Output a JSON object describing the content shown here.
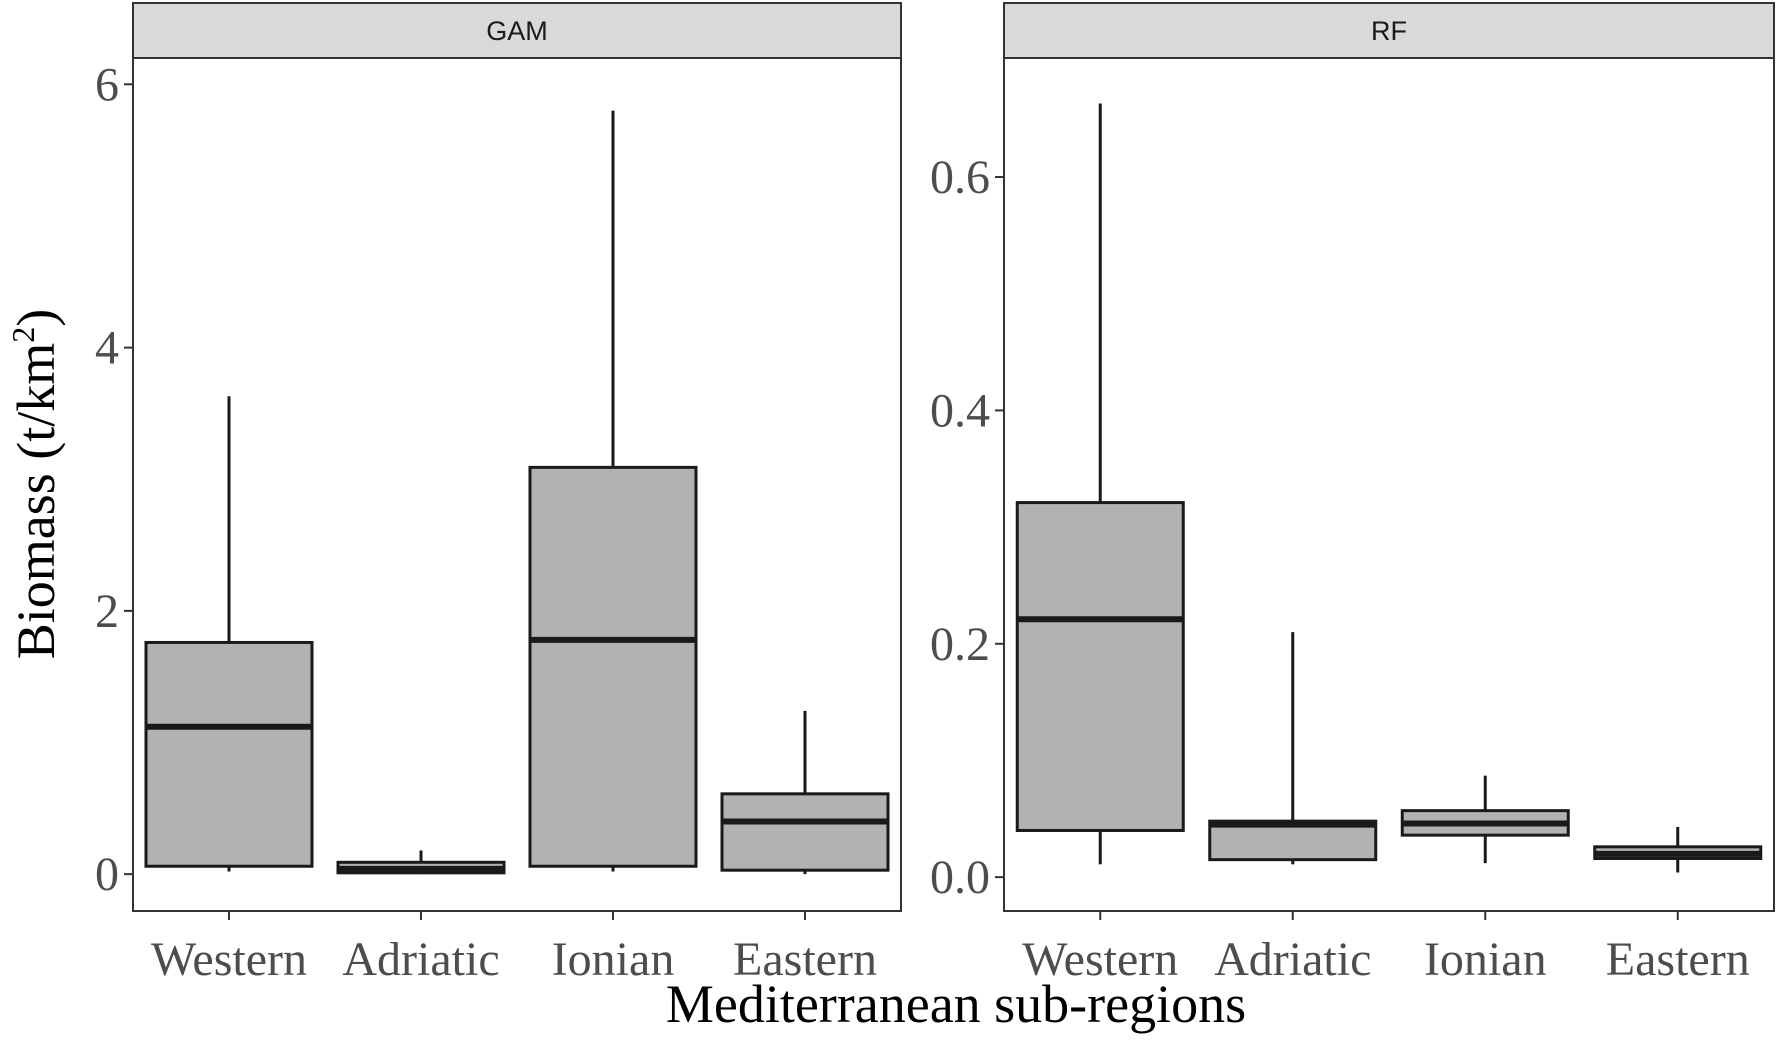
{
  "chart_data": [
    {
      "type": "box",
      "panel": "GAM",
      "categories": [
        "Western",
        "Adriatic",
        "Ionian",
        "Eastern"
      ],
      "boxes": [
        {
          "category": "Western",
          "min": 0.02,
          "q1": 0.06,
          "median": 1.12,
          "q3": 1.76,
          "max": 3.63
        },
        {
          "category": "Adriatic",
          "min": 0.0,
          "q1": 0.01,
          "median": 0.04,
          "q3": 0.09,
          "max": 0.18
        },
        {
          "category": "Ionian",
          "min": 0.02,
          "q1": 0.06,
          "median": 1.78,
          "q3": 3.09,
          "max": 5.8
        },
        {
          "category": "Eastern",
          "min": 0.0,
          "q1": 0.03,
          "median": 0.4,
          "q3": 0.61,
          "max": 1.24
        }
      ],
      "yticks": [
        0,
        2,
        4,
        6
      ],
      "ytick_labels": [
        "0",
        "2",
        "4",
        "6"
      ],
      "ylim": [
        -0.28,
        6.2
      ],
      "box_color": "#b2b2b2",
      "line_color": "#1a1a1a"
    },
    {
      "type": "box",
      "panel": "RF",
      "categories": [
        "Western",
        "Adriatic",
        "Ionian",
        "Eastern"
      ],
      "boxes": [
        {
          "category": "Western",
          "min": 0.011,
          "q1": 0.04,
          "median": 0.221,
          "q3": 0.321,
          "max": 0.663
        },
        {
          "category": "Adriatic",
          "min": 0.011,
          "q1": 0.015,
          "median": 0.045,
          "q3": 0.048,
          "max": 0.21
        },
        {
          "category": "Ionian",
          "min": 0.012,
          "q1": 0.036,
          "median": 0.046,
          "q3": 0.057,
          "max": 0.087
        },
        {
          "category": "Eastern",
          "min": 0.004,
          "q1": 0.016,
          "median": 0.02,
          "q3": 0.026,
          "max": 0.043
        }
      ],
      "yticks": [
        0.0,
        0.2,
        0.4,
        0.6
      ],
      "ytick_labels": [
        "0.0",
        "0.2",
        "0.4",
        "0.6"
      ],
      "ylim": [
        -0.029,
        0.702
      ],
      "box_color": "#b2b2b2",
      "line_color": "#1a1a1a"
    }
  ],
  "axis_titles": {
    "x": "Mediterranean sub-regions",
    "y": "Biomass (t/km",
    "y_superscript": "2",
    "y_suffix": ")"
  }
}
